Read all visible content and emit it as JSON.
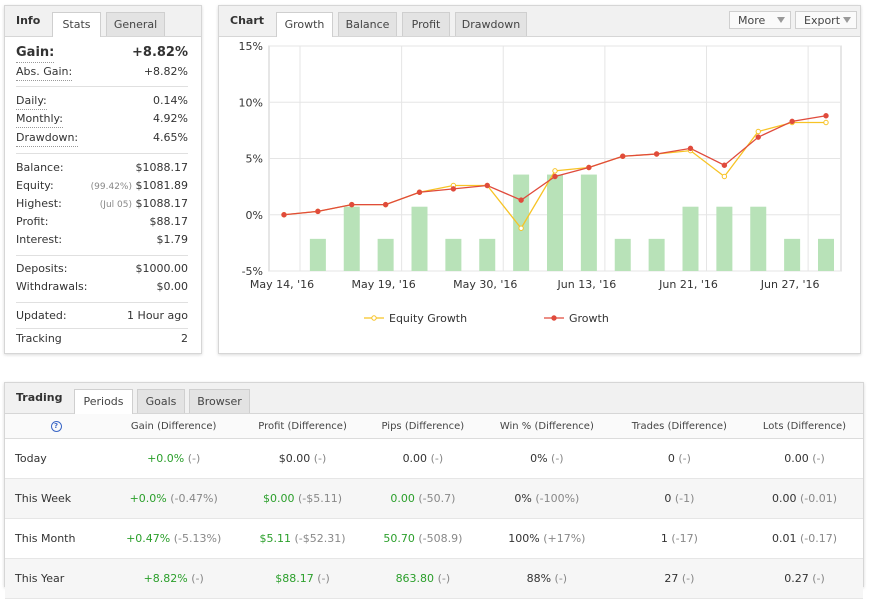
{
  "info": {
    "title": "Info",
    "tabs": [
      "Stats",
      "General"
    ],
    "gain": {
      "label": "Gain:",
      "value": "+8.82%"
    },
    "abs_gain": {
      "label": "Abs. Gain:",
      "value": "+8.82%"
    },
    "daily": {
      "label": "Daily:",
      "value": "0.14%"
    },
    "monthly": {
      "label": "Monthly:",
      "value": "4.92%"
    },
    "drawdown": {
      "label": "Drawdown:",
      "value": "4.65%"
    },
    "balance": {
      "label": "Balance:",
      "value": "$1088.17"
    },
    "equity": {
      "label": "Equity:",
      "note": "(99.42%)",
      "value": "$1081.89"
    },
    "highest": {
      "label": "Highest:",
      "note": "(Jul 05)",
      "value": "$1088.17"
    },
    "profit": {
      "label": "Profit:",
      "value": "$88.17"
    },
    "interest": {
      "label": "Interest:",
      "value": "$1.79"
    },
    "deposits": {
      "label": "Deposits:",
      "value": "$1000.00"
    },
    "withdrawals": {
      "label": "Withdrawals:",
      "value": "$0.00"
    },
    "updated": {
      "label": "Updated:",
      "value": "1 Hour ago"
    },
    "tracking": {
      "label": "Tracking",
      "value": "2"
    }
  },
  "chart_panel": {
    "title": "Chart",
    "tabs": [
      "Growth",
      "Balance",
      "Profit",
      "Drawdown"
    ],
    "more_label": "More",
    "export_label": "Export",
    "colors": {
      "equity": "#f7c325",
      "growth": "#e04b3c",
      "bars": "#b8e2b8",
      "grid": "#e5e5e5"
    }
  },
  "chart_data": {
    "type": "line",
    "x_labels": [
      "May 14, '16",
      "May 19, '16",
      "May 30, '16",
      "Jun 13, '16",
      "Jun 21, '16",
      "Jun 27, '16"
    ],
    "x_label_positions": [
      0,
      3,
      6,
      9,
      12,
      15
    ],
    "y_ticks": [
      "15%",
      "10%",
      "5%",
      "0%",
      "-5%"
    ],
    "ylim": [
      -5,
      15
    ],
    "series": [
      {
        "name": "Equity Growth",
        "values": [
          0,
          0.3,
          0.9,
          0.9,
          2.0,
          2.6,
          2.6,
          -1.2,
          3.9,
          4.2,
          5.2,
          5.4,
          5.7,
          3.4,
          7.4,
          8.2,
          8.2
        ]
      },
      {
        "name": "Growth",
        "values": [
          0,
          0.3,
          0.9,
          0.9,
          2.0,
          2.3,
          2.6,
          1.3,
          3.4,
          4.2,
          5.2,
          5.4,
          5.9,
          4.4,
          6.9,
          8.3,
          8.8
        ]
      }
    ],
    "bars": [
      0,
      1,
      2,
      1,
      2,
      1,
      1,
      3,
      3,
      3,
      1,
      1,
      2,
      2,
      2,
      1,
      1
    ],
    "bar_max": 7
  },
  "trading": {
    "title": "Trading",
    "tabs": [
      "Periods",
      "Goals",
      "Browser"
    ],
    "help_icon": "?",
    "columns": [
      "Gain (Difference)",
      "Profit (Difference)",
      "Pips (Difference)",
      "Win % (Difference)",
      "Trades (Difference)",
      "Lots (Difference)"
    ],
    "rows": [
      {
        "label": "Today",
        "cells": [
          [
            "+0.0%",
            "(-)"
          ],
          [
            "$0.00",
            "(-)"
          ],
          [
            "0.00",
            "(-)"
          ],
          [
            "0%",
            "(-)"
          ],
          [
            "0",
            "(-)"
          ],
          [
            "0.00",
            "(-)"
          ]
        ]
      },
      {
        "label": "This Week",
        "cells": [
          [
            "+0.0%",
            "(-0.47%)"
          ],
          [
            "$0.00",
            "(-$5.11)"
          ],
          [
            "0.00",
            "(-50.7)"
          ],
          [
            "0%",
            "(-100%)"
          ],
          [
            "0",
            "(-1)"
          ],
          [
            "0.00",
            "(-0.01)"
          ]
        ]
      },
      {
        "label": "This Month",
        "cells": [
          [
            "+0.47%",
            "(-5.13%)"
          ],
          [
            "$5.11",
            "(-$52.31)"
          ],
          [
            "50.70",
            "(-508.9)"
          ],
          [
            "100%",
            "(+17%)"
          ],
          [
            "1",
            "(-17)"
          ],
          [
            "0.01",
            "(-0.17)"
          ]
        ]
      },
      {
        "label": "This Year",
        "cells": [
          [
            "+8.82%",
            "(-)"
          ],
          [
            "$88.17",
            "(-)"
          ],
          [
            "863.80",
            "(-)"
          ],
          [
            "88%",
            "(-)"
          ],
          [
            "27",
            "(-)"
          ],
          [
            "0.27",
            "(-)"
          ]
        ]
      }
    ],
    "green_columns": [
      0,
      1,
      2
    ]
  }
}
